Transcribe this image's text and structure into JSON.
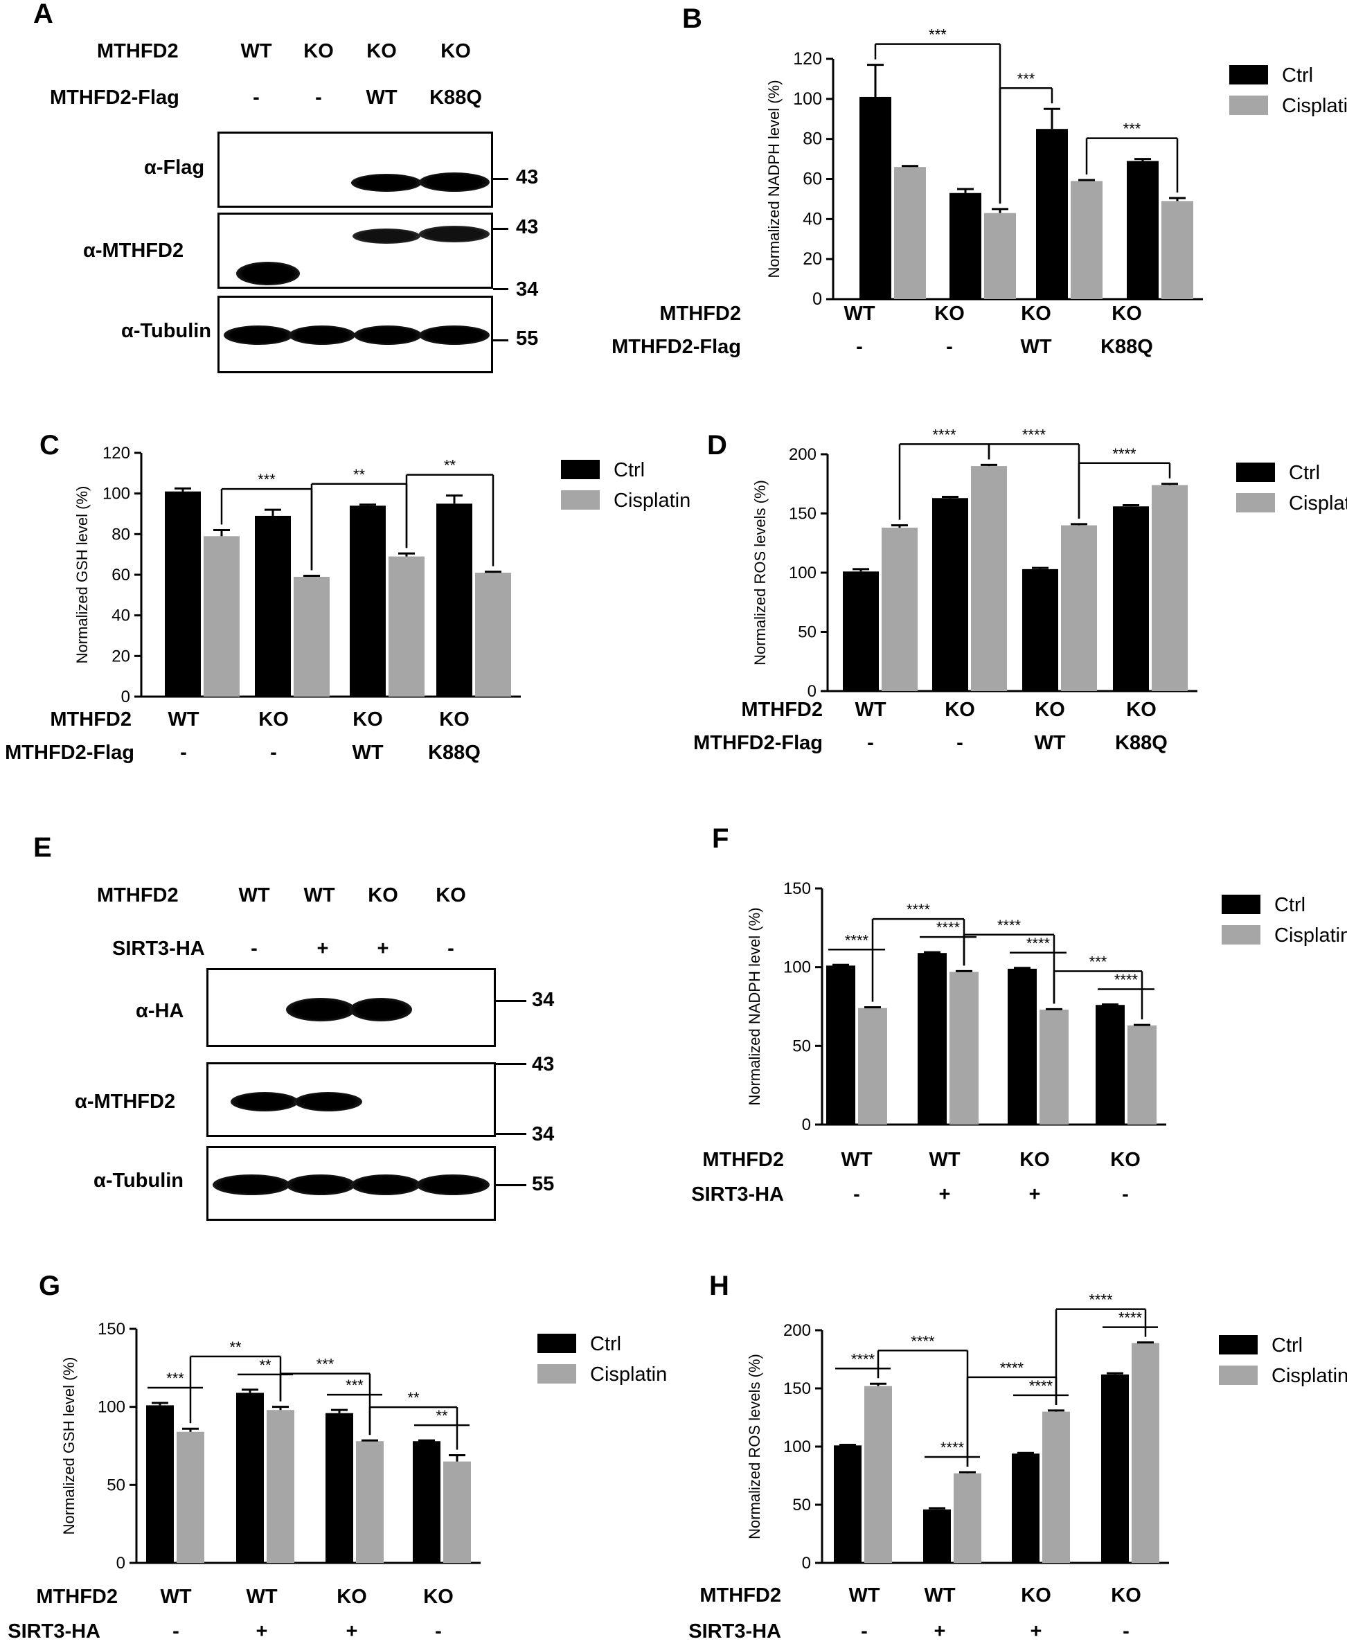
{
  "colors": {
    "ctrl": "#000000",
    "cisplatin": "#a6a6a6"
  },
  "blots": [
    {
      "letter": "A",
      "row_labels": [
        "MTHFD2",
        "MTHFD2-Flag"
      ],
      "columns": [
        {
          "mthfd2": "WT",
          "flag": "-"
        },
        {
          "mthfd2": "KO",
          "flag": "-"
        },
        {
          "mthfd2": "KO",
          "flag": "WT"
        },
        {
          "mthfd2": "KO",
          "flag": "K88Q"
        }
      ],
      "panels": [
        {
          "label": "α-Flag",
          "markers": [
            "43"
          ]
        },
        {
          "label": "α-MTHFD2",
          "markers": [
            "43",
            "34"
          ]
        },
        {
          "label": "α-Tubulin",
          "markers": [
            "55"
          ]
        }
      ]
    },
    {
      "letter": "E",
      "row_labels": [
        "MTHFD2",
        "SIRT3-HA"
      ],
      "columns": [
        {
          "mthfd2": "WT",
          "sirt3": "-"
        },
        {
          "mthfd2": "WT",
          "sirt3": "+"
        },
        {
          "mthfd2": "KO",
          "sirt3": "+"
        },
        {
          "mthfd2": "KO",
          "sirt3": "-"
        }
      ],
      "panels": [
        {
          "label": "α-HA",
          "markers": [
            "34"
          ]
        },
        {
          "label": "α-MTHFD2",
          "markers": [
            "43",
            "34"
          ]
        },
        {
          "label": "α-Tubulin",
          "markers": [
            "55"
          ]
        }
      ]
    }
  ],
  "chart_data": [
    {
      "letter": "B",
      "type": "bar",
      "ylabel": "Normalized NADPH level (%)",
      "ylim": [
        0,
        120
      ],
      "yticks": [
        0,
        20,
        40,
        60,
        80,
        100,
        120
      ],
      "legend": [
        "Ctrl",
        "Cisplatin"
      ],
      "row_labels": [
        "MTHFD2",
        "MTHFD2-Flag"
      ],
      "groups": [
        [
          "WT",
          "-"
        ],
        [
          "KO",
          "-"
        ],
        [
          "KO",
          "WT"
        ],
        [
          "KO",
          "K88Q"
        ]
      ],
      "series": [
        {
          "name": "Ctrl",
          "values": [
            101,
            53,
            85,
            69
          ],
          "errors": [
            16,
            2,
            10,
            1
          ]
        },
        {
          "name": "Cisplatin",
          "values": [
            66,
            43,
            59,
            49
          ],
          "errors": [
            0.5,
            2,
            0.5,
            1.5
          ]
        }
      ],
      "significance": [
        {
          "from": "1.0",
          "to": "2.1",
          "label": "***"
        },
        {
          "from": "2.1",
          "to": "3.0",
          "label": "***"
        },
        {
          "from": "3.1",
          "to": "4.1",
          "label": "***"
        }
      ]
    },
    {
      "letter": "C",
      "type": "bar",
      "ylabel": "Normalized GSH level (%)",
      "ylim": [
        0,
        120
      ],
      "yticks": [
        0,
        20,
        40,
        60,
        80,
        100,
        120
      ],
      "legend": [
        "Ctrl",
        "Cisplatin"
      ],
      "row_labels": [
        "MTHFD2",
        "MTHFD2-Flag"
      ],
      "groups": [
        [
          "WT",
          "-"
        ],
        [
          "KO",
          "-"
        ],
        [
          "KO",
          "WT"
        ],
        [
          "KO",
          "K88Q"
        ]
      ],
      "series": [
        {
          "name": "Ctrl",
          "values": [
            101,
            89,
            94,
            95
          ],
          "errors": [
            1.5,
            3,
            0.5,
            4
          ]
        },
        {
          "name": "Cisplatin",
          "values": [
            79,
            59,
            69,
            61
          ],
          "errors": [
            3,
            0.5,
            1.5,
            0.5
          ]
        }
      ],
      "significance": [
        {
          "from": "1.1",
          "to": "2.1",
          "label": "***"
        },
        {
          "from": "2.1",
          "to": "3.1",
          "label": "**"
        },
        {
          "from": "3.1",
          "to": "4.1",
          "label": "**"
        }
      ]
    },
    {
      "letter": "D",
      "type": "bar",
      "ylabel": "Normalized ROS levels (%)",
      "ylim": [
        0,
        200
      ],
      "yticks": [
        0,
        50,
        100,
        150,
        200
      ],
      "legend": [
        "Ctrl",
        "Cisplatin"
      ],
      "row_labels": [
        "MTHFD2",
        "MTHFD2-Flag"
      ],
      "groups": [
        [
          "WT",
          "-"
        ],
        [
          "KO",
          "-"
        ],
        [
          "KO",
          "WT"
        ],
        [
          "KO",
          "K88Q"
        ]
      ],
      "series": [
        {
          "name": "Ctrl",
          "values": [
            101,
            163,
            103,
            156
          ],
          "errors": [
            2,
            1,
            1,
            1
          ]
        },
        {
          "name": "Cisplatin",
          "values": [
            138,
            190,
            140,
            174
          ],
          "errors": [
            2,
            1,
            1,
            1
          ]
        }
      ],
      "significance": [
        {
          "from": "1.1",
          "to": "2.1",
          "label": "****"
        },
        {
          "from": "2.1",
          "to": "3.1",
          "label": "****"
        },
        {
          "from": "3.1",
          "to": "4.1",
          "label": "****"
        }
      ]
    },
    {
      "letter": "F",
      "type": "bar",
      "ylabel": "Normalized NADPH level (%)",
      "ylim": [
        0,
        150
      ],
      "yticks": [
        0,
        50,
        100,
        150
      ],
      "legend": [
        "Ctrl",
        "Cisplatin"
      ],
      "row_labels": [
        "MTHFD2",
        "SIRT3-HA"
      ],
      "groups": [
        [
          "WT",
          "-"
        ],
        [
          "WT",
          "+"
        ],
        [
          "KO",
          "+"
        ],
        [
          "KO",
          "-"
        ]
      ],
      "series": [
        {
          "name": "Ctrl",
          "values": [
            101,
            109,
            99,
            76
          ],
          "errors": [
            0.5,
            0.5,
            0.5,
            0.3
          ]
        },
        {
          "name": "Cisplatin",
          "values": [
            74,
            97,
            73,
            63
          ],
          "errors": [
            0.5,
            0.5,
            0.3,
            0.3
          ]
        }
      ],
      "significance": [
        {
          "from": "1.0",
          "to": "1.1",
          "label": "****"
        },
        {
          "from": "1.1",
          "to": "2.1",
          "label": "****"
        },
        {
          "from": "2.0",
          "to": "2.1",
          "label": "****"
        },
        {
          "from": "2.1",
          "to": "3.1",
          "label": "****"
        },
        {
          "from": "3.0",
          "to": "3.1",
          "label": "****"
        },
        {
          "from": "3.1",
          "to": "4.1",
          "label": "***"
        },
        {
          "from": "4.0",
          "to": "4.1",
          "label": "****"
        }
      ]
    },
    {
      "letter": "G",
      "type": "bar",
      "ylabel": "Normalized GSH level (%)",
      "ylim": [
        0,
        150
      ],
      "yticks": [
        0,
        50,
        100,
        150
      ],
      "legend": [
        "Ctrl",
        "Cisplatin"
      ],
      "row_labels": [
        "MTHFD2",
        "SIRT3-HA"
      ],
      "groups": [
        [
          "WT",
          "-"
        ],
        [
          "WT",
          "+"
        ],
        [
          "KO",
          "+"
        ],
        [
          "KO",
          "-"
        ]
      ],
      "series": [
        {
          "name": "Ctrl",
          "values": [
            101,
            109,
            96,
            78
          ],
          "errors": [
            1.5,
            2,
            2,
            0.5
          ]
        },
        {
          "name": "Cisplatin",
          "values": [
            84,
            98,
            78,
            65
          ],
          "errors": [
            2,
            2,
            0.5,
            4
          ]
        }
      ],
      "significance": [
        {
          "from": "1.0",
          "to": "1.1",
          "label": "***"
        },
        {
          "from": "1.1",
          "to": "2.1",
          "label": "**"
        },
        {
          "from": "2.0",
          "to": "2.1",
          "label": "**"
        },
        {
          "from": "2.1",
          "to": "3.1",
          "label": "***"
        },
        {
          "from": "3.0",
          "to": "3.1",
          "label": "***"
        },
        {
          "from": "3.1",
          "to": "4.1",
          "label": "**"
        },
        {
          "from": "4.0",
          "to": "4.1",
          "label": "**"
        }
      ]
    },
    {
      "letter": "H",
      "type": "bar",
      "ylabel": "Normalized ROS levels (%)",
      "ylim": [
        0,
        200
      ],
      "yticks": [
        0,
        50,
        100,
        150,
        200
      ],
      "legend": [
        "Ctrl",
        "Cisplatin"
      ],
      "row_labels": [
        "MTHFD2",
        "SIRT3-HA"
      ],
      "groups": [
        [
          "WT",
          "-"
        ],
        [
          "WT",
          "+"
        ],
        [
          "KO",
          "+"
        ],
        [
          "KO",
          "-"
        ]
      ],
      "series": [
        {
          "name": "Ctrl",
          "values": [
            101,
            46,
            94,
            162
          ],
          "errors": [
            0.5,
            1,
            0.5,
            1
          ]
        },
        {
          "name": "Cisplatin",
          "values": [
            152,
            77,
            130,
            189
          ],
          "errors": [
            2,
            1,
            1,
            0.5
          ]
        }
      ],
      "significance": [
        {
          "from": "1.0",
          "to": "1.1",
          "label": "****"
        },
        {
          "from": "1.1",
          "to": "2.1",
          "label": "****"
        },
        {
          "from": "2.0",
          "to": "2.1",
          "label": "****"
        },
        {
          "from": "2.1",
          "to": "3.1",
          "label": "****"
        },
        {
          "from": "3.0",
          "to": "3.1",
          "label": "****"
        },
        {
          "from": "3.1",
          "to": "4.1",
          "label": "****"
        },
        {
          "from": "4.0",
          "to": "4.1",
          "label": "****"
        }
      ]
    }
  ]
}
